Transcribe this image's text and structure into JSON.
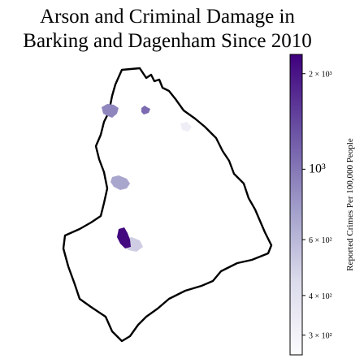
{
  "title": "Arson and Criminal Damage in\nBarking and Dagenham Since 2010",
  "map": {
    "outline_color": "#000000",
    "regions": [
      {
        "name": "hotspot-north-west",
        "value": 900
      },
      {
        "name": "hotspot-north",
        "value": 1100
      },
      {
        "name": "hotspot-north-east-faint",
        "value": 320
      },
      {
        "name": "hotspot-west-centre",
        "value": 700
      },
      {
        "name": "hotspot-south-west-dark",
        "value": 2200
      },
      {
        "name": "hotspot-south-west-light",
        "value": 500
      }
    ]
  },
  "colorbar": {
    "label": "Reported Crimes Per 100,000 People",
    "scale": "log",
    "range": [
      260,
      2300
    ],
    "colormap": [
      "#fcfbfd",
      "#dadaeb",
      "#9e9ac8",
      "#6a51a3",
      "#3f007d"
    ],
    "ticks": [
      {
        "value": 300,
        "label": "3 × 10²"
      },
      {
        "value": 400,
        "label": "4 × 10²"
      },
      {
        "value": 600,
        "label": "6 × 10²"
      },
      {
        "value": 1000,
        "label": "10³"
      },
      {
        "value": 2000,
        "label": "2 × 10³"
      }
    ]
  }
}
